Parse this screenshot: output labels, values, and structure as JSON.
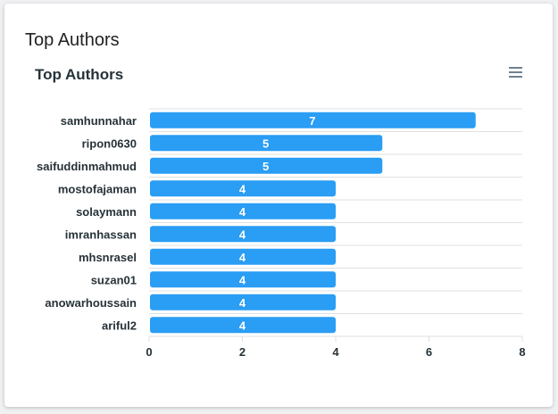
{
  "card": {
    "title": "Top Authors"
  },
  "chart_data": {
    "type": "bar",
    "orientation": "horizontal",
    "title": "Top Authors",
    "categories": [
      "samhunnahar",
      "ripon0630",
      "saifuddinmahmud",
      "mostofajaman",
      "solaymann",
      "imranhassan",
      "mhsnrasel",
      "suzan01",
      "anowarhoussain",
      "ariful2"
    ],
    "values": [
      7,
      5,
      5,
      4,
      4,
      4,
      4,
      4,
      4,
      4
    ],
    "xlim": [
      0,
      8
    ],
    "xticks": [
      0,
      2,
      4,
      6,
      8
    ],
    "xlabel": "",
    "ylabel": "",
    "data_labels": true,
    "grid": "horizontal",
    "legend": "none",
    "colors": {
      "bar": "#2a9df4",
      "label": "#ffffff",
      "axis_text": "#263238",
      "grid": "#e0e0e0"
    }
  },
  "toolbar": {
    "menu_icon": "hamburger-menu-icon"
  }
}
